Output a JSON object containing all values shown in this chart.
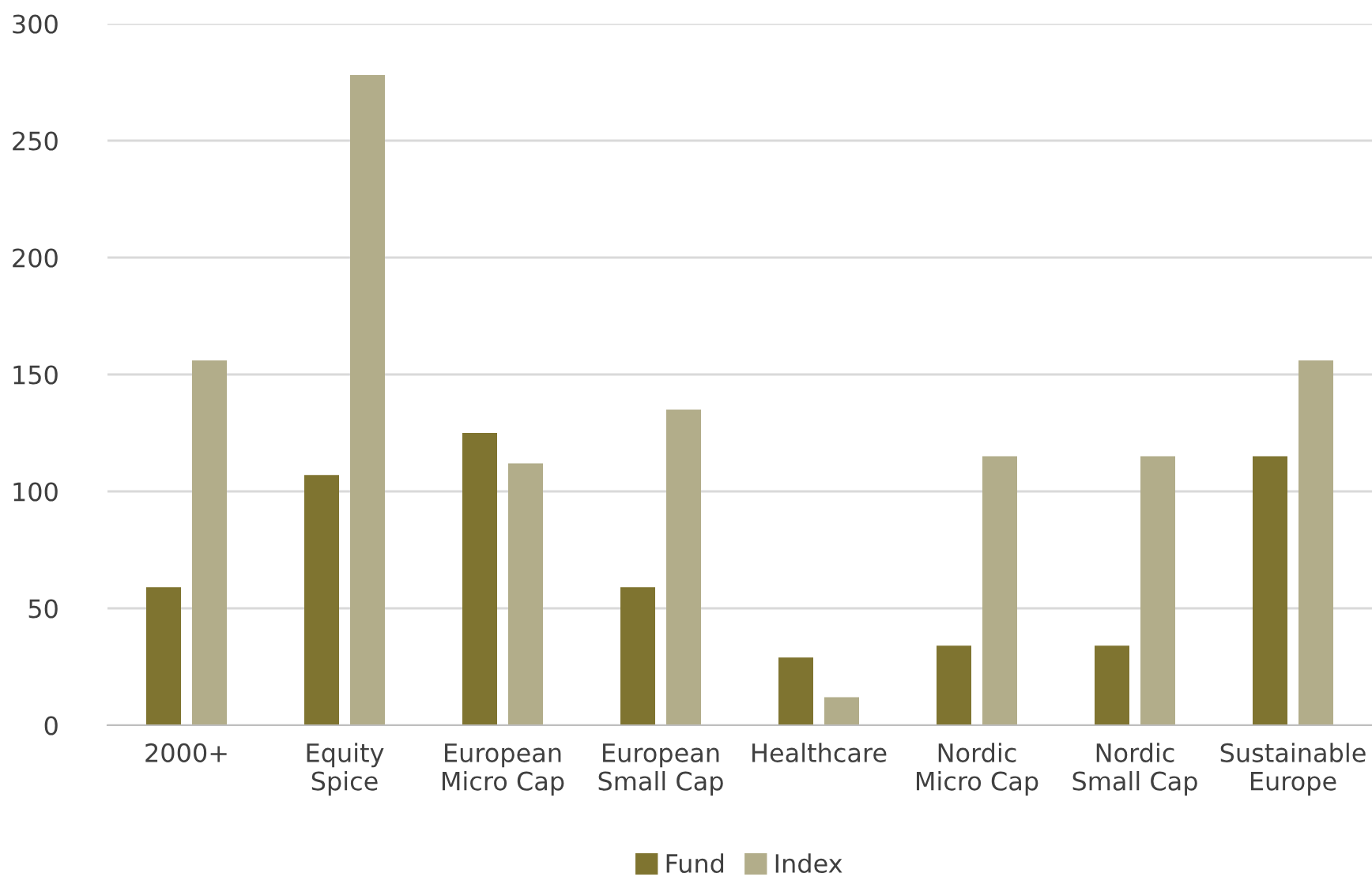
{
  "chart_data": {
    "type": "bar",
    "categories": [
      "2000+",
      "Equity\nSpice",
      "European\nMicro Cap",
      "European\nSmall Cap",
      "Healthcare",
      "Nordic\nMicro Cap",
      "Nordic\nSmall Cap",
      "Sustainable\nEurope"
    ],
    "series": [
      {
        "name": "Fund",
        "color": "#7f7430",
        "values": [
          59,
          107,
          125,
          59,
          29,
          34,
          34,
          115
        ]
      },
      {
        "name": "Index",
        "color": "#b2ad8a",
        "values": [
          156,
          278,
          112,
          135,
          12,
          115,
          115,
          156
        ]
      }
    ],
    "ylim": [
      0,
      300
    ],
    "yticks": [
      0,
      50,
      100,
      150,
      200,
      250,
      300
    ],
    "grid": "y",
    "legend": "bottom"
  }
}
